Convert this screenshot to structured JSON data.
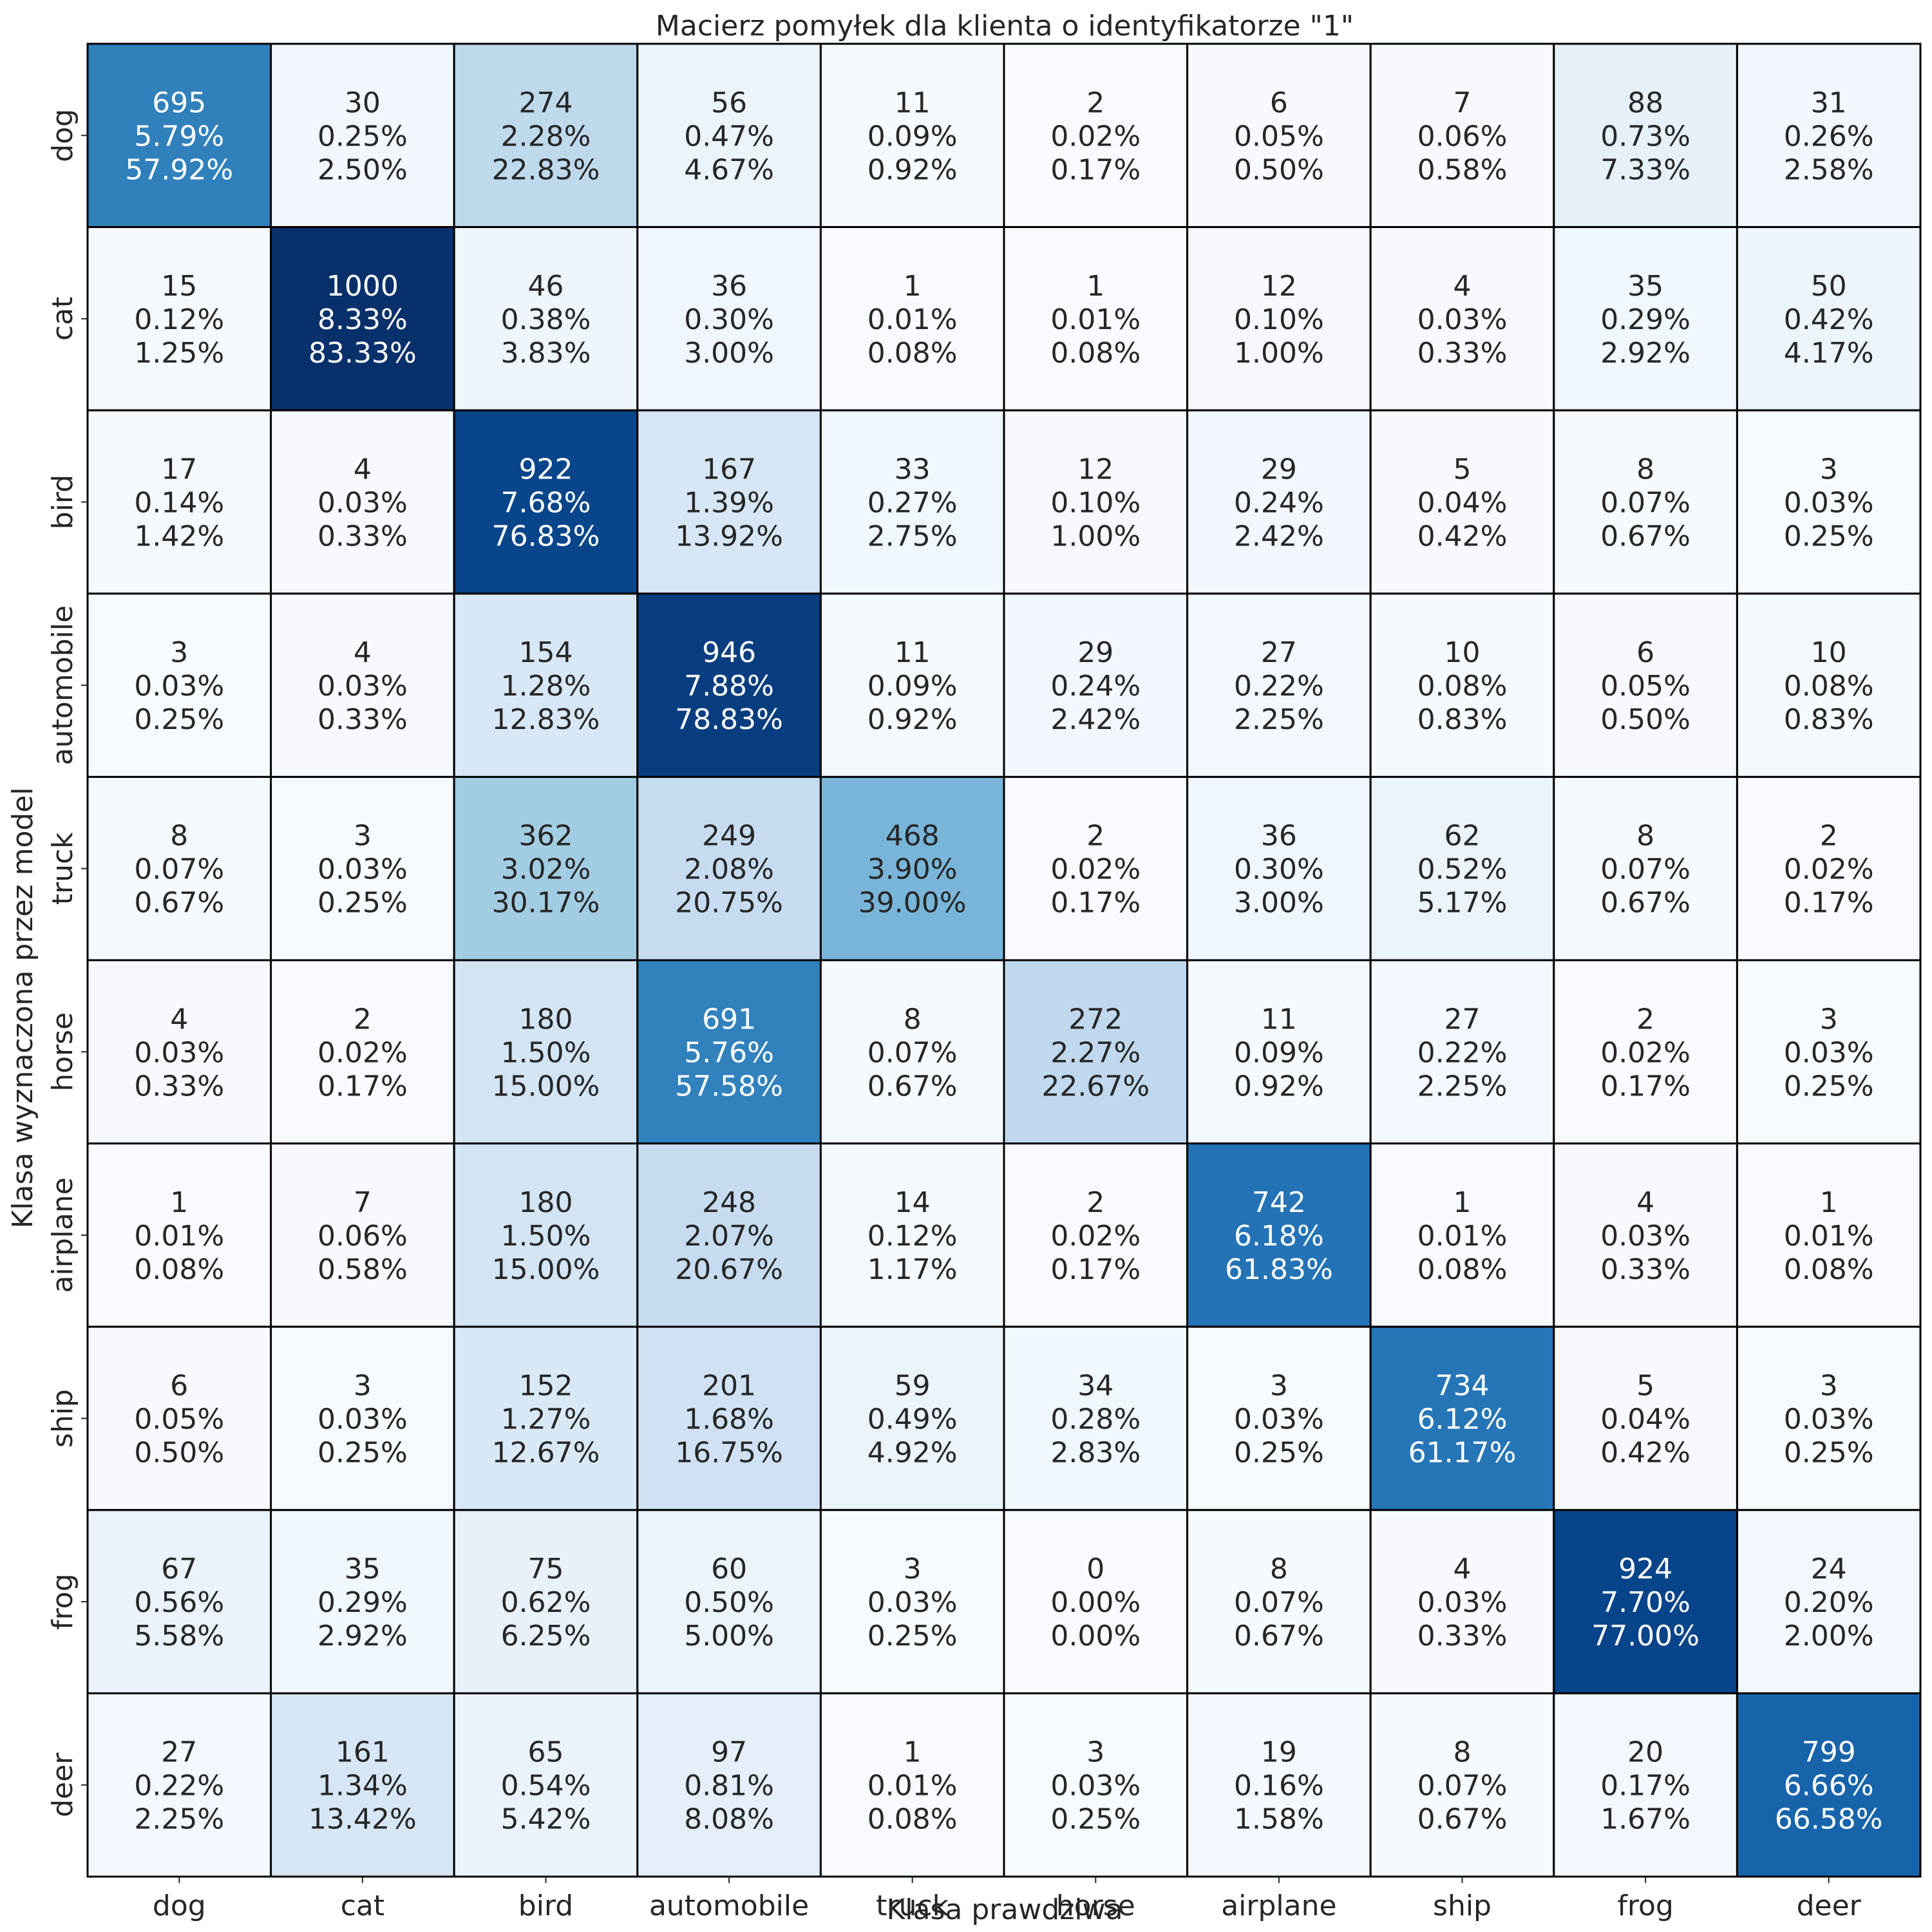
{
  "chart_data": {
    "type": "heatmap",
    "title": "Macierz pomyłek dla klienta o identyfikatorze \"1\"",
    "xlabel": "Klasa prawdziwa",
    "ylabel": "Klasa wyznaczona przez model",
    "x_categories": [
      "dog",
      "cat",
      "bird",
      "automobile",
      "truck",
      "horse",
      "airplane",
      "ship",
      "frog",
      "deer"
    ],
    "y_categories": [
      "dog",
      "cat",
      "bird",
      "automobile",
      "truck",
      "horse",
      "airplane",
      "ship",
      "frog",
      "deer"
    ],
    "colormap": "Blues",
    "value_range": [
      0,
      1000
    ],
    "grid": true,
    "legend": "none",
    "values": [
      [
        695,
        30,
        274,
        56,
        11,
        2,
        6,
        7,
        88,
        31
      ],
      [
        15,
        1000,
        46,
        36,
        1,
        1,
        12,
        4,
        35,
        50
      ],
      [
        17,
        4,
        922,
        167,
        33,
        12,
        29,
        5,
        8,
        3
      ],
      [
        3,
        4,
        154,
        946,
        11,
        29,
        27,
        10,
        6,
        10
      ],
      [
        8,
        3,
        362,
        249,
        468,
        2,
        36,
        62,
        8,
        2
      ],
      [
        4,
        2,
        180,
        691,
        8,
        272,
        11,
        27,
        2,
        3
      ],
      [
        1,
        7,
        180,
        248,
        14,
        2,
        742,
        1,
        4,
        1
      ],
      [
        6,
        3,
        152,
        201,
        59,
        34,
        3,
        734,
        5,
        3
      ],
      [
        67,
        35,
        75,
        60,
        3,
        0,
        8,
        4,
        924,
        24
      ],
      [
        27,
        161,
        65,
        97,
        1,
        3,
        19,
        8,
        20,
        799
      ]
    ],
    "pct_total": [
      [
        "5.79%",
        "0.25%",
        "2.28%",
        "0.47%",
        "0.09%",
        "0.02%",
        "0.05%",
        "0.06%",
        "0.73%",
        "0.26%"
      ],
      [
        "0.12%",
        "8.33%",
        "0.38%",
        "0.30%",
        "0.01%",
        "0.01%",
        "0.10%",
        "0.03%",
        "0.29%",
        "0.42%"
      ],
      [
        "0.14%",
        "0.03%",
        "7.68%",
        "1.39%",
        "0.27%",
        "0.10%",
        "0.24%",
        "0.04%",
        "0.07%",
        "0.03%"
      ],
      [
        "0.03%",
        "0.03%",
        "1.28%",
        "7.88%",
        "0.09%",
        "0.24%",
        "0.22%",
        "0.08%",
        "0.05%",
        "0.08%"
      ],
      [
        "0.07%",
        "0.03%",
        "3.02%",
        "2.08%",
        "3.90%",
        "0.02%",
        "0.30%",
        "0.52%",
        "0.07%",
        "0.02%"
      ],
      [
        "0.03%",
        "0.02%",
        "1.50%",
        "5.76%",
        "0.07%",
        "2.27%",
        "0.09%",
        "0.22%",
        "0.02%",
        "0.03%"
      ],
      [
        "0.01%",
        "0.06%",
        "1.50%",
        "2.07%",
        "0.12%",
        "0.02%",
        "6.18%",
        "0.01%",
        "0.03%",
        "0.01%"
      ],
      [
        "0.05%",
        "0.03%",
        "1.27%",
        "1.68%",
        "0.49%",
        "0.28%",
        "0.03%",
        "6.12%",
        "0.04%",
        "0.03%"
      ],
      [
        "0.56%",
        "0.29%",
        "0.62%",
        "0.50%",
        "0.03%",
        "0.00%",
        "0.07%",
        "0.03%",
        "7.70%",
        "0.20%"
      ],
      [
        "0.22%",
        "1.34%",
        "0.54%",
        "0.81%",
        "0.01%",
        "0.03%",
        "0.16%",
        "0.07%",
        "0.17%",
        "6.66%"
      ]
    ],
    "pct_class": [
      [
        "57.92%",
        "2.50%",
        "22.83%",
        "4.67%",
        "0.92%",
        "0.17%",
        "0.50%",
        "0.58%",
        "7.33%",
        "2.58%"
      ],
      [
        "1.25%",
        "83.33%",
        "3.83%",
        "3.00%",
        "0.08%",
        "0.08%",
        "1.00%",
        "0.33%",
        "2.92%",
        "4.17%"
      ],
      [
        "1.42%",
        "0.33%",
        "76.83%",
        "13.92%",
        "2.75%",
        "1.00%",
        "2.42%",
        "0.42%",
        "0.67%",
        "0.25%"
      ],
      [
        "0.25%",
        "0.33%",
        "12.83%",
        "78.83%",
        "0.92%",
        "2.42%",
        "2.25%",
        "0.83%",
        "0.50%",
        "0.83%"
      ],
      [
        "0.67%",
        "0.25%",
        "30.17%",
        "20.75%",
        "39.00%",
        "0.17%",
        "3.00%",
        "5.17%",
        "0.67%",
        "0.17%"
      ],
      [
        "0.33%",
        "0.17%",
        "15.00%",
        "57.58%",
        "0.67%",
        "22.67%",
        "0.92%",
        "2.25%",
        "0.17%",
        "0.25%"
      ],
      [
        "0.08%",
        "0.58%",
        "15.00%",
        "20.67%",
        "1.17%",
        "0.17%",
        "61.83%",
        "0.08%",
        "0.33%",
        "0.08%"
      ],
      [
        "0.50%",
        "0.25%",
        "12.67%",
        "16.75%",
        "4.92%",
        "2.83%",
        "0.25%",
        "61.17%",
        "0.42%",
        "0.25%"
      ],
      [
        "5.58%",
        "2.92%",
        "6.25%",
        "5.00%",
        "0.25%",
        "0.00%",
        "0.67%",
        "0.33%",
        "77.00%",
        "2.00%"
      ],
      [
        "2.25%",
        "13.42%",
        "5.42%",
        "8.08%",
        "0.08%",
        "0.25%",
        "1.58%",
        "0.67%",
        "1.67%",
        "66.58%"
      ]
    ]
  }
}
